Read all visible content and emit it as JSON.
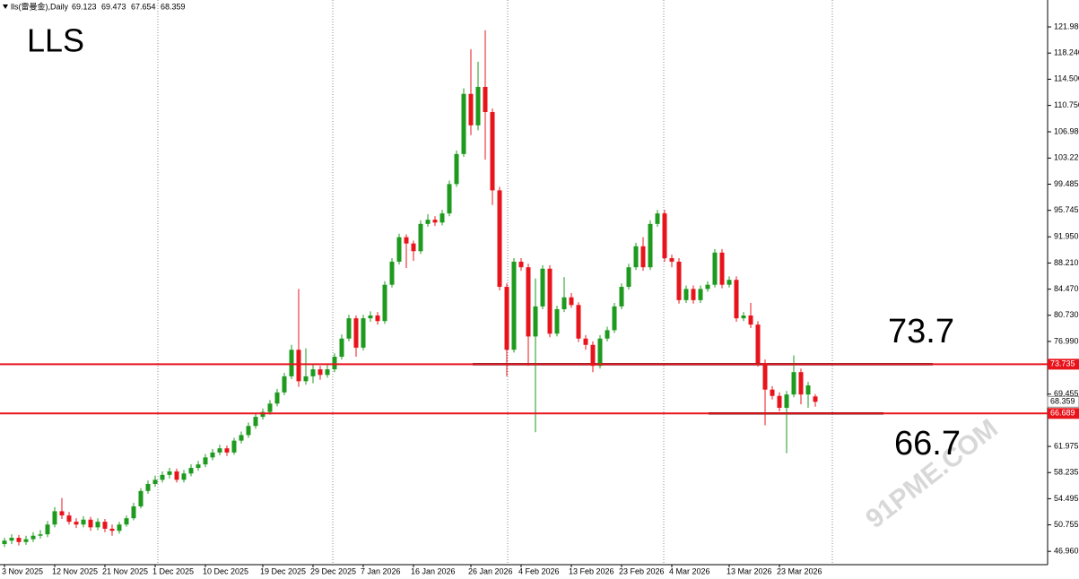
{
  "chart_data": {
    "type": "candlestick",
    "title": "LLS",
    "symbol": "lls(雷曼金),Daily",
    "watermark": "91PME.COM",
    "categories": [
      "3 Nov 2025",
      null,
      null,
      null,
      null,
      null,
      null,
      "12 Nov 2025",
      null,
      null,
      null,
      null,
      null,
      null,
      "21 Nov 2025",
      null,
      null,
      null,
      null,
      null,
      null,
      "1 Dec 2025",
      null,
      null,
      null,
      null,
      null,
      null,
      "10 Dec 2025",
      null,
      null,
      null,
      null,
      null,
      null,
      null,
      "19 Dec 2025",
      null,
      null,
      null,
      null,
      null,
      null,
      "29 Dec 2025",
      null,
      null,
      null,
      null,
      null,
      null,
      "7 Jan 2026",
      null,
      null,
      null,
      null,
      null,
      null,
      "16 Jan 2026",
      null,
      null,
      null,
      null,
      null,
      null,
      null,
      "26 Jan 2026",
      null,
      null,
      null,
      null,
      null,
      null,
      "4 Feb 2026",
      null,
      null,
      null,
      null,
      null,
      null,
      "13 Feb 2026",
      null,
      null,
      null,
      null,
      null,
      null,
      "23 Feb 2026",
      null,
      null,
      null,
      null,
      null,
      null,
      "4 Mar 2026",
      null,
      null,
      null,
      null,
      null,
      null,
      null,
      "13 Mar 2026",
      null,
      null,
      null,
      null,
      null,
      null,
      "23 Mar 2026",
      null,
      null,
      null,
      null,
      null
    ],
    "open": [
      48.0,
      48.5,
      48.9,
      48.3,
      48.7,
      49.2,
      49.4,
      50.8,
      52.7,
      52.1,
      51.2,
      50.8,
      51.5,
      50.4,
      51.2,
      50.2,
      49.9,
      50.8,
      51.7,
      53.4,
      55.6,
      56.6,
      57.2,
      57.9,
      58.4,
      57.2,
      58.1,
      58.9,
      59.4,
      60.4,
      61.1,
      61.7,
      61.1,
      62.8,
      63.6,
      64.9,
      66.2,
      66.9,
      68.1,
      69.7,
      72.0,
      75.8,
      71.3,
      72.0,
      73.0,
      72.2,
      73.0,
      74.8,
      77.4,
      80.3,
      76.1,
      80.3,
      80.7,
      79.9,
      85.1,
      88.4,
      91.9,
      91.0,
      89.9,
      93.8,
      94.4,
      94.0,
      95.3,
      99.5,
      103.8,
      112.4,
      107.9,
      113.4,
      109.8,
      98.6,
      84.8,
      75.8,
      88.4,
      87.6,
      77.7,
      82.0,
      87.4,
      78.1,
      81.6,
      83.3,
      82.2,
      77.4,
      76.5,
      73.5,
      77.4,
      78.6,
      82.0,
      84.8,
      87.6,
      90.6,
      87.6,
      93.8,
      95.3,
      88.9,
      88.4,
      82.9,
      84.5,
      82.9,
      84.5,
      85.1,
      89.7,
      85.1,
      85.8,
      80.3,
      80.7,
      79.4,
      73.9,
      70.1,
      69.2,
      67.5,
      69.4,
      72.6,
      69.4,
      69.123
    ],
    "high": [
      48.9,
      49.4,
      49.3,
      49.2,
      49.7,
      50.0,
      51.3,
      53.3,
      54.6,
      52.6,
      51.7,
      52.0,
      51.9,
      51.7,
      51.6,
      50.8,
      51.2,
      52.1,
      53.9,
      56.0,
      57.1,
      57.8,
      58.4,
      58.9,
      58.8,
      58.6,
      59.4,
      59.9,
      60.9,
      61.6,
      62.2,
      62.1,
      63.2,
      64.1,
      65.4,
      66.7,
      67.4,
      68.6,
      70.2,
      72.5,
      76.5,
      84.5,
      76.0,
      73.8,
      73.5,
      73.6,
      75.3,
      78.0,
      80.8,
      80.7,
      80.8,
      81.3,
      81.2,
      85.6,
      88.9,
      92.4,
      92.3,
      91.4,
      94.3,
      95.2,
      94.9,
      95.8,
      100.0,
      104.3,
      113.2,
      118.8,
      117.0,
      121.5,
      110.3,
      99.1,
      85.3,
      88.9,
      88.9,
      88.1,
      86.0,
      87.9,
      87.9,
      82.1,
      86.2,
      83.9,
      82.6,
      77.9,
      77.0,
      77.9,
      79.1,
      82.5,
      85.3,
      88.1,
      91.1,
      91.9,
      94.3,
      95.8,
      95.8,
      89.4,
      88.9,
      85.0,
      85.0,
      85.0,
      85.6,
      90.2,
      90.2,
      86.3,
      86.3,
      81.2,
      82.5,
      79.9,
      74.4,
      70.6,
      69.7,
      69.9,
      75.0,
      73.1,
      71.2,
      69.473
    ],
    "low": [
      47.6,
      48.0,
      47.8,
      47.9,
      48.3,
      48.8,
      49.0,
      50.4,
      51.6,
      50.8,
      50.3,
      50.4,
      49.9,
      50.0,
      49.7,
      49.2,
      49.5,
      50.5,
      51.4,
      53.1,
      55.2,
      56.2,
      56.8,
      57.4,
      56.8,
      56.8,
      57.7,
      58.5,
      59.0,
      60.0,
      60.7,
      60.6,
      60.8,
      62.4,
      63.2,
      64.5,
      65.8,
      66.5,
      67.7,
      69.3,
      71.6,
      70.5,
      70.8,
      71.0,
      71.5,
      71.8,
      72.6,
      74.4,
      77.0,
      74.8,
      75.7,
      79.8,
      79.4,
      79.5,
      84.7,
      88.0,
      87.5,
      88.5,
      89.5,
      93.4,
      93.5,
      93.6,
      94.9,
      99.1,
      103.4,
      106.5,
      107.2,
      103.0,
      96.5,
      84.3,
      72.0,
      75.4,
      87.1,
      73.5,
      64.0,
      81.6,
      77.6,
      77.7,
      81.2,
      81.8,
      76.9,
      75.8,
      72.6,
      73.1,
      77.0,
      78.2,
      81.6,
      84.4,
      87.2,
      87.1,
      87.2,
      93.4,
      88.4,
      87.6,
      82.4,
      82.5,
      82.4,
      82.5,
      84.1,
      84.7,
      84.6,
      84.7,
      79.8,
      79.9,
      78.9,
      73.4,
      65.0,
      68.7,
      67.0,
      61.0,
      69.0,
      68.0,
      67.5,
      67.654
    ],
    "close": [
      48.5,
      48.9,
      48.3,
      48.7,
      49.2,
      49.4,
      50.8,
      52.7,
      52.1,
      51.2,
      50.8,
      51.5,
      50.4,
      51.2,
      50.2,
      49.9,
      50.8,
      51.7,
      53.4,
      55.6,
      56.6,
      57.2,
      57.9,
      58.4,
      57.2,
      58.1,
      58.9,
      59.4,
      60.4,
      61.1,
      61.7,
      61.1,
      62.8,
      63.6,
      64.9,
      66.2,
      66.9,
      68.1,
      69.7,
      72.0,
      75.8,
      71.3,
      72.0,
      73.0,
      72.2,
      73.0,
      74.8,
      77.4,
      80.3,
      76.1,
      80.3,
      80.7,
      79.9,
      85.1,
      88.4,
      91.9,
      91.0,
      89.9,
      93.8,
      94.4,
      94.0,
      95.3,
      99.5,
      103.8,
      112.4,
      107.9,
      113.4,
      109.8,
      98.6,
      84.8,
      75.8,
      88.4,
      87.6,
      77.7,
      82.0,
      87.4,
      78.1,
      81.6,
      83.3,
      82.2,
      77.4,
      76.5,
      73.5,
      77.4,
      78.6,
      82.0,
      84.8,
      87.6,
      90.6,
      87.6,
      93.8,
      95.3,
      88.9,
      88.4,
      82.9,
      84.5,
      82.9,
      84.5,
      85.1,
      89.7,
      85.1,
      85.8,
      80.3,
      80.7,
      79.4,
      73.9,
      70.1,
      69.2,
      67.5,
      69.4,
      72.6,
      69.4,
      70.7,
      68.359
    ],
    "up_color": "#1e9a1e",
    "down_color": "#e8141c",
    "ylim": [
      45.06,
      125.83
    ],
    "yticks": [
      {
        "value": 121.98,
        "label": "121.980"
      },
      {
        "value": 118.24,
        "label": "118.240"
      },
      {
        "value": 114.5,
        "label": "114.500"
      },
      {
        "value": 110.75,
        "label": "110.750"
      },
      {
        "value": 106.98,
        "label": "106.980"
      },
      {
        "value": 103.22,
        "label": "103.220"
      },
      {
        "value": 99.485,
        "label": "99.485"
      },
      {
        "value": 95.745,
        "label": "95.745"
      },
      {
        "value": 91.95,
        "label": "91.950"
      },
      {
        "value": 88.21,
        "label": "88.210"
      },
      {
        "value": 84.47,
        "label": "84.470"
      },
      {
        "value": 80.73,
        "label": "80.730"
      },
      {
        "value": 76.99,
        "label": "76.990"
      },
      {
        "value": 69.455,
        "label": "69.455"
      },
      {
        "value": 61.975,
        "label": "61.975"
      },
      {
        "value": 58.235,
        "label": "58.235"
      },
      {
        "value": 54.495,
        "label": "54.495"
      },
      {
        "value": 50.755,
        "label": "50.755"
      },
      {
        "value": 46.96,
        "label": "46.960"
      }
    ],
    "hlines": [
      {
        "value": 73.735,
        "color": "#e8141c"
      },
      {
        "value": 66.689,
        "color": "#e8141c"
      }
    ],
    "annotations": [
      "73.7",
      "66.7"
    ]
  }
}
